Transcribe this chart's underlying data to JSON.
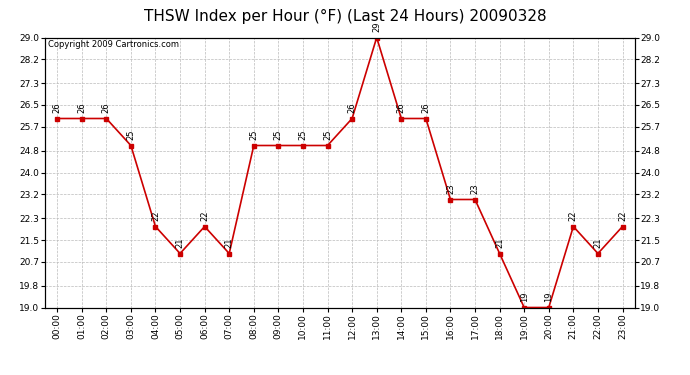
{
  "title": "THSW Index per Hour (°F) (Last 24 Hours) 20090328",
  "copyright": "Copyright 2009 Cartronics.com",
  "hours": [
    "00:00",
    "01:00",
    "02:00",
    "03:00",
    "04:00",
    "05:00",
    "06:00",
    "07:00",
    "08:00",
    "09:00",
    "10:00",
    "11:00",
    "12:00",
    "13:00",
    "14:00",
    "15:00",
    "16:00",
    "17:00",
    "18:00",
    "19:00",
    "20:00",
    "21:00",
    "22:00",
    "23:00"
  ],
  "values": [
    26,
    26,
    26,
    25,
    22,
    21,
    22,
    21,
    25,
    25,
    25,
    25,
    26,
    29,
    26,
    26,
    23,
    23,
    21,
    19,
    19,
    22,
    21,
    22
  ],
  "line_color": "#cc0000",
  "marker_color": "#cc0000",
  "bg_color": "#ffffff",
  "plot_bg_color": "#ffffff",
  "grid_color": "#bbbbbb",
  "ylim_min": 19.0,
  "ylim_max": 29.0,
  "yticks": [
    19.0,
    19.8,
    20.7,
    21.5,
    22.3,
    23.2,
    24.0,
    24.8,
    25.7,
    26.5,
    27.3,
    28.2,
    29.0
  ],
  "title_fontsize": 11,
  "label_fontsize": 6.5,
  "copyright_fontsize": 6,
  "annot_fontsize": 6
}
